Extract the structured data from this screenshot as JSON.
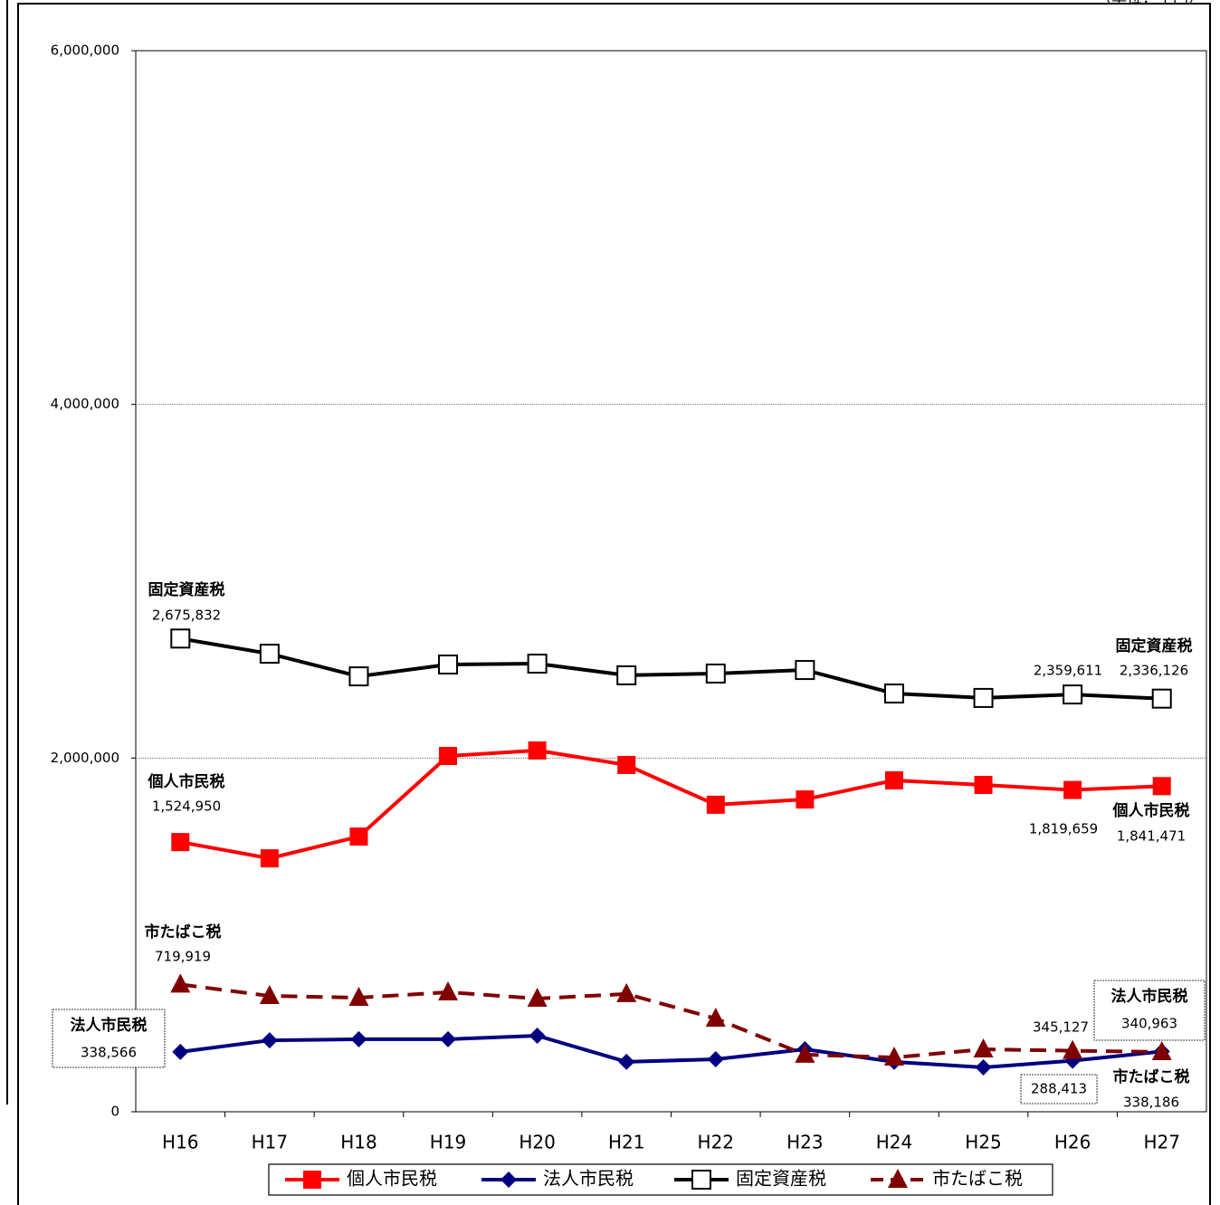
{
  "chart_data": {
    "type": "line",
    "unit_note": "（単位：千円）",
    "categories": [
      "H16",
      "H17",
      "H18",
      "H19",
      "H20",
      "H21",
      "H22",
      "H23",
      "H24",
      "H25",
      "H26",
      "H27"
    ],
    "ylim": [
      0,
      6000000
    ],
    "yticks": [
      0,
      {
        "value": 2000000,
        "label": "2,000,000"
      },
      {
        "value": 4000000,
        "label": "4,000,000"
      },
      {
        "value": 6000000,
        "label": "6,000,000"
      }
    ],
    "grid": true,
    "legend": "bottom",
    "series": [
      {
        "name": "個人市民税",
        "color": "#ff0000",
        "marker": "square",
        "dash": false,
        "values": [
          1524950,
          1433000,
          1556000,
          2012000,
          2043000,
          1961000,
          1736000,
          1766000,
          1874000,
          1848000,
          1819659,
          1841471
        ],
        "value_labels": [
          "1,524,950",
          null,
          null,
          null,
          null,
          null,
          null,
          null,
          null,
          null,
          "1,819,659",
          "1,841,471"
        ]
      },
      {
        "name": "法人市民税",
        "color": "#000080",
        "marker": "diamond",
        "dash": false,
        "values": [
          338566,
          404000,
          410000,
          410000,
          430000,
          282000,
          297000,
          353000,
          282000,
          251000,
          288413,
          340963
        ],
        "value_labels": [
          "338,566",
          null,
          null,
          null,
          null,
          null,
          null,
          null,
          null,
          null,
          "288,413",
          "340,963"
        ]
      },
      {
        "name": "固定資産税",
        "color": "#000000",
        "marker": "open-square",
        "dash": false,
        "values": [
          2675832,
          2590000,
          2462000,
          2529000,
          2534000,
          2468000,
          2478000,
          2498000,
          2365000,
          2340000,
          2359611,
          2336126
        ],
        "value_labels": [
          "2,675,832",
          null,
          null,
          null,
          null,
          null,
          null,
          null,
          null,
          null,
          "2,359,611",
          "2,336,126"
        ]
      },
      {
        "name": "市たばこ税",
        "color": "#800000",
        "marker": "triangle",
        "dash": true,
        "values": [
          719919,
          655000,
          645000,
          676000,
          640000,
          666000,
          527000,
          323000,
          307000,
          353000,
          345127,
          338186
        ],
        "value_labels": [
          "719,919",
          null,
          null,
          null,
          null,
          null,
          null,
          null,
          null,
          null,
          "345,127",
          "338,186"
        ]
      }
    ]
  }
}
